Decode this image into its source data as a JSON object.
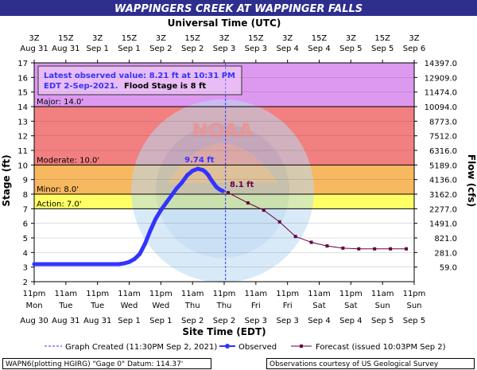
{
  "title": "WAPPINGERS CREEK AT WAPPINGER FALLS",
  "top_axis_title": "Universal Time (UTC)",
  "top_ticks": [
    {
      "t": "3Z",
      "d": "Aug 31"
    },
    {
      "t": "15Z",
      "d": "Aug 31"
    },
    {
      "t": "3Z",
      "d": "Sep 1"
    },
    {
      "t": "15Z",
      "d": "Sep 1"
    },
    {
      "t": "3Z",
      "d": "Sep 2"
    },
    {
      "t": "15Z",
      "d": "Sep 2"
    },
    {
      "t": "3Z",
      "d": "Sep 3"
    },
    {
      "t": "15Z",
      "d": "Sep 3"
    },
    {
      "t": "3Z",
      "d": "Sep 4"
    },
    {
      "t": "15Z",
      "d": "Sep 4"
    },
    {
      "t": "3Z",
      "d": "Sep 5"
    },
    {
      "t": "15Z",
      "d": "Sep 5"
    },
    {
      "t": "3Z",
      "d": "Sep 6"
    }
  ],
  "bottom_ticks": [
    {
      "t": "11pm",
      "w": "Mon",
      "d": "Aug 30"
    },
    {
      "t": "11am",
      "w": "Tue",
      "d": "Aug 31"
    },
    {
      "t": "11pm",
      "w": "Tue",
      "d": "Aug 31"
    },
    {
      "t": "11am",
      "w": "Wed",
      "d": "Sep 1"
    },
    {
      "t": "11pm",
      "w": "Wed",
      "d": "Sep 1"
    },
    {
      "t": "11am",
      "w": "Thu",
      "d": "Sep 2"
    },
    {
      "t": "11pm",
      "w": "Thu",
      "d": "Sep 2"
    },
    {
      "t": "11am",
      "w": "Fri",
      "d": "Sep 3"
    },
    {
      "t": "11pm",
      "w": "Fri",
      "d": "Sep 3"
    },
    {
      "t": "11am",
      "w": "Sat",
      "d": "Sep 4"
    },
    {
      "t": "11pm",
      "w": "Sat",
      "d": "Sep 4"
    },
    {
      "t": "11am",
      "w": "Sun",
      "d": "Sep 5"
    },
    {
      "t": "11pm",
      "w": "Sun",
      "d": "Sep 5"
    }
  ],
  "bottom_axis_title": "Site Time (EDT)",
  "left_axis_title": "Stage (ft)",
  "right_axis_title": "Flow (cfs)",
  "stage_ticks": [
    2,
    3,
    4,
    5,
    6,
    7,
    8,
    9,
    10,
    11,
    12,
    13,
    14,
    15,
    16,
    17
  ],
  "flow_ticks": [
    {
      "stage": 3,
      "label": "59.0"
    },
    {
      "stage": 4,
      "label": "281.0"
    },
    {
      "stage": 5,
      "label": "821.0"
    },
    {
      "stage": 6,
      "label": "1491.0"
    },
    {
      "stage": 7,
      "label": "2277.0"
    },
    {
      "stage": 8,
      "label": "3162.0"
    },
    {
      "stage": 9,
      "label": "4136.0"
    },
    {
      "stage": 10,
      "label": "5189.0"
    },
    {
      "stage": 11,
      "label": "6316.0"
    },
    {
      "stage": 12,
      "label": "7512.0"
    },
    {
      "stage": 13,
      "label": "8773.0"
    },
    {
      "stage": 14,
      "label": "10094.0"
    },
    {
      "stage": 15,
      "label": "11474.0"
    },
    {
      "stage": 16,
      "label": "12909.0"
    },
    {
      "stage": 17,
      "label": "14397.0"
    }
  ],
  "zones": [
    {
      "label": "Major: 14.0'",
      "from": 14,
      "to": 17,
      "color": "#dd99f0"
    },
    {
      "label": "Moderate: 10.0'",
      "from": 10,
      "to": 14,
      "color": "#f28080"
    },
    {
      "label": "Minor: 8.0'",
      "from": 8,
      "to": 10,
      "color": "#f8b860"
    },
    {
      "label": "Action: 7.0'",
      "from": 7,
      "to": 8,
      "color": "#ffff66"
    }
  ],
  "info": {
    "line1": "Latest observed value: 8.21 ft at 10:31 PM",
    "line2a": "EDT 2-Sep-2021.",
    "line2b": "Flood Stage is 8 ft"
  },
  "peak_label": "9.74 ft",
  "forecast_label": "8.1 ft",
  "legend": {
    "graph_created": "Graph Created (11:30PM Sep 2, 2021)",
    "observed": "Observed",
    "forecast": "Forecast (issued 10:03PM Sep 2)"
  },
  "footer": {
    "left": "WAPN6(plotting HGIRG) \"Gage 0\" Datum: 114.37'",
    "right": "Observations courtesy of US Geological Survey"
  },
  "watermark": "NATIONAL OCEANIC AND ATMOSPHERIC ADMINISTRATION · U.S. DEPARTMENT OF COMMERCE · NOAA",
  "colors": {
    "title_bar": "#2e2e8e",
    "observed": "#3333ff",
    "forecast": "#660044",
    "info_text": "#3333ff",
    "graph_created_line": "#3333ff"
  },
  "chart_data": {
    "type": "line",
    "title": "WAPPINGERS CREEK AT WAPPINGER FALLS",
    "xlabel": "Site Time (EDT)",
    "ylabel": "Stage (ft)",
    "y2label": "Flow (cfs)",
    "xunit": "hours since 11pm Mon Aug 30 EDT",
    "xlim": [
      0,
      144
    ],
    "ylim": [
      2,
      17
    ],
    "graph_created_x": 72.5,
    "series": [
      {
        "name": "Observed",
        "color": "#3333ff",
        "x": [
          0,
          6,
          12,
          18,
          24,
          28,
          32,
          34,
          36,
          38,
          40,
          42,
          44,
          46,
          48,
          50,
          52,
          54,
          56,
          58,
          60,
          62,
          64,
          65,
          66,
          67,
          68,
          69,
          70,
          71,
          71.5
        ],
        "y": [
          3.2,
          3.2,
          3.2,
          3.2,
          3.2,
          3.2,
          3.2,
          3.25,
          3.35,
          3.55,
          3.9,
          4.6,
          5.5,
          6.3,
          6.9,
          7.4,
          7.9,
          8.4,
          8.8,
          9.3,
          9.6,
          9.74,
          9.65,
          9.5,
          9.3,
          9.0,
          8.75,
          8.5,
          8.35,
          8.25,
          8.21
        ]
      },
      {
        "name": "Forecast",
        "color": "#660044",
        "x": [
          73.5,
          81,
          87,
          93,
          99,
          105,
          111,
          117,
          123,
          129,
          135,
          141
        ],
        "y": [
          8.1,
          7.4,
          6.9,
          6.1,
          5.1,
          4.7,
          4.45,
          4.3,
          4.25,
          4.25,
          4.25,
          4.25
        ]
      }
    ]
  }
}
